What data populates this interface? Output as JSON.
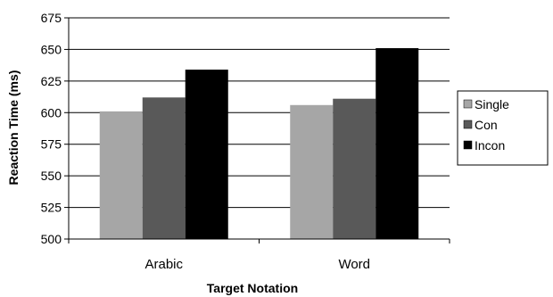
{
  "chart_data": {
    "type": "bar",
    "categories": [
      "Arabic",
      "Word"
    ],
    "series": [
      {
        "name": "Single",
        "values": [
          601,
          606
        ],
        "color": "#a6a6a6"
      },
      {
        "name": "Con",
        "values": [
          612,
          611
        ],
        "color": "#595959"
      },
      {
        "name": "Incon",
        "values": [
          634,
          651
        ],
        "color": "#000000"
      }
    ],
    "xlabel": "Target Notation",
    "ylabel": "Reaction Time (ms)",
    "ylim": [
      500,
      675
    ],
    "yticks": [
      500,
      525,
      550,
      575,
      600,
      625,
      650,
      675
    ],
    "grid": true,
    "legend": "right"
  }
}
